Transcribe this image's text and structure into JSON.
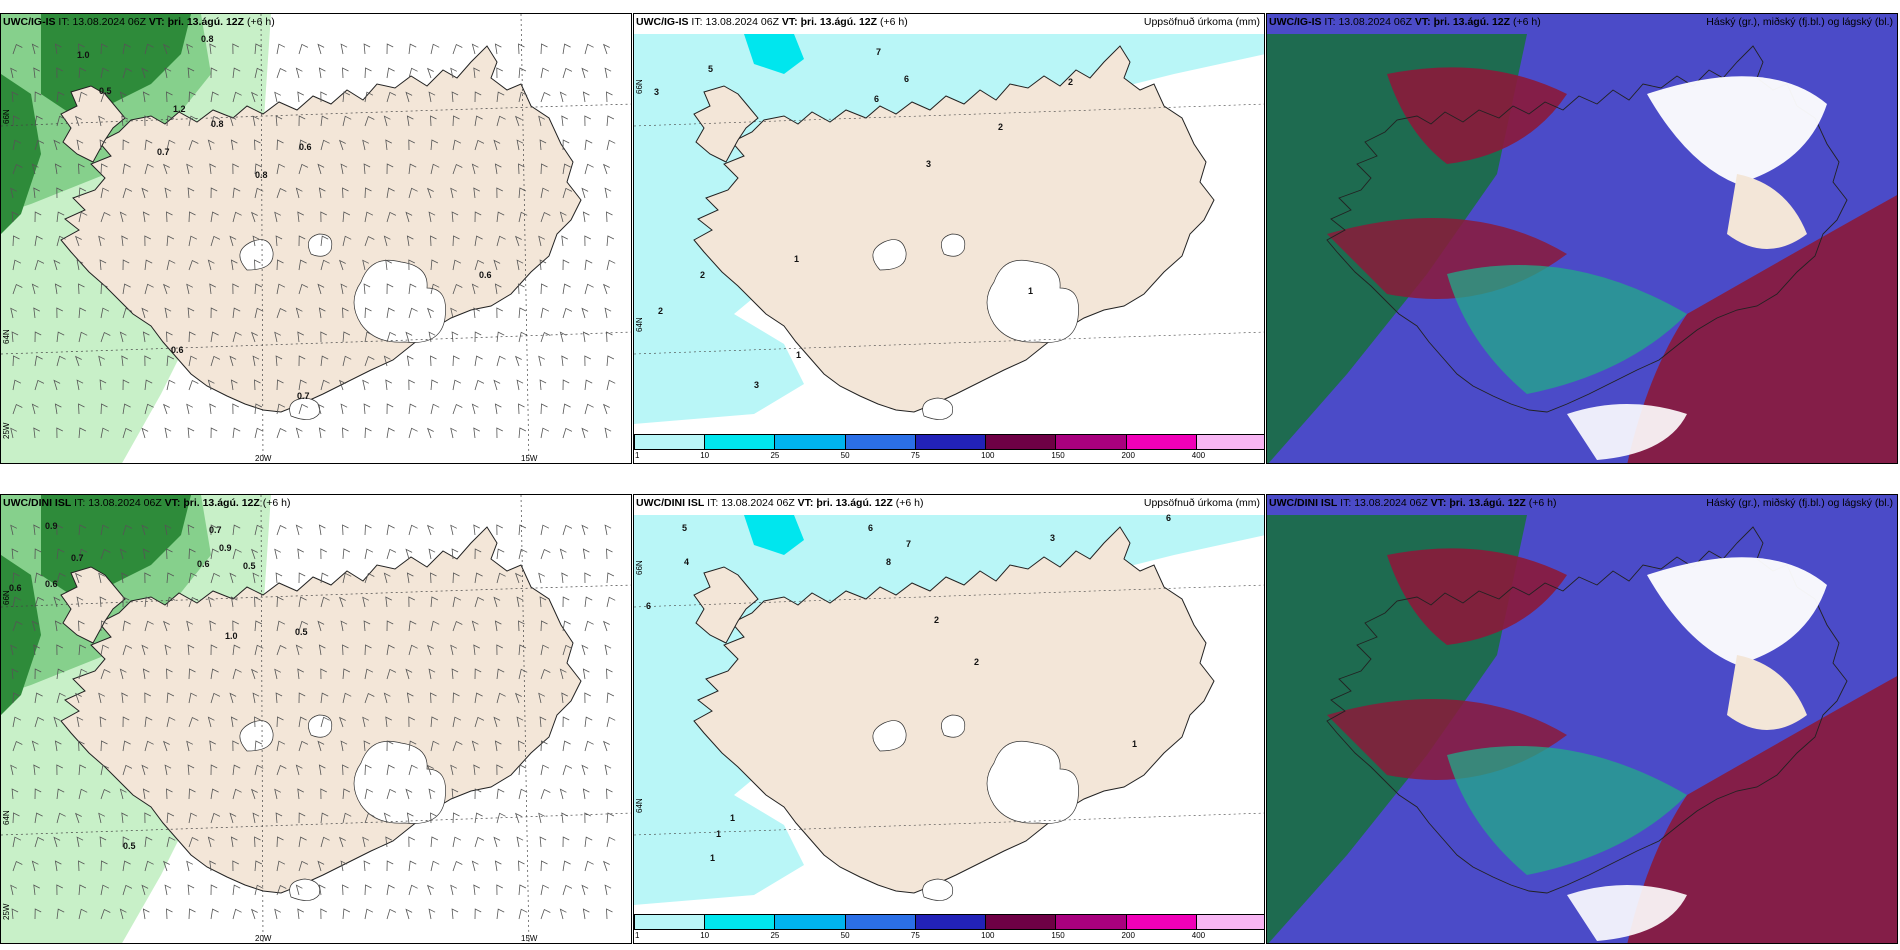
{
  "colors": {
    "land": "#f3e6d8",
    "sea": "#ffffff",
    "precip_light": "#b9f6f7",
    "green_light": "#c8f0c8",
    "green_mid": "#86d08c",
    "green_dark": "#2e8b3a",
    "cloud_high": "#1e6b50",
    "cloud_mid": "#8b1a3a",
    "cloud_low": "#4b4bc8"
  },
  "colorbar": [
    {
      "label": "1",
      "color": "#b9f6f7"
    },
    {
      "label": "10",
      "color": "#00e6ee"
    },
    {
      "label": "25",
      "color": "#00b4ef"
    },
    {
      "label": "50",
      "color": "#2b6fe6"
    },
    {
      "label": "75",
      "color": "#2222b8"
    },
    {
      "label": "100",
      "color": "#6e0045"
    },
    {
      "label": "150",
      "color": "#a8007e"
    },
    {
      "label": "200",
      "color": "#f000b8"
    },
    {
      "label": "400",
      "color": "#f7b6f3"
    }
  ],
  "row1": {
    "wind": {
      "model": "UWC/IG-IS",
      "it_label": "IT:",
      "it": "13.08.2024 06Z",
      "vt_label": "VT:",
      "vt": "þri. 13.ágú. 12Z",
      "lead": "(+6 h)",
      "values": [
        "1.0",
        "0.8",
        "0.5",
        "1.2",
        "0.8",
        "0.7",
        "0.6",
        "0.8",
        "0.6",
        "0.6",
        "0.7"
      ],
      "lon_ticks": [
        "20W",
        "15W"
      ],
      "lat_ticks": [
        "66N",
        "64N",
        "25W"
      ]
    },
    "precip": {
      "model": "UWC/IG-IS",
      "it_label": "IT:",
      "it": "13.08.2024 06Z",
      "vt_label": "VT:",
      "vt": "þri. 13.ágú. 12Z",
      "lead": "(+6 h)",
      "right_title": "Uppsöfnuð úrkoma (mm)",
      "values": [
        "7",
        "5",
        "3",
        "6",
        "6",
        "2",
        "2",
        "3",
        "1",
        "2",
        "1",
        "1",
        "2",
        "3"
      ],
      "lat_ticks": [
        "66N",
        "64N"
      ]
    },
    "cloud": {
      "model": "UWC/IG-IS",
      "it_label": "IT:",
      "it": "13.08.2024 06Z",
      "vt_label": "VT:",
      "vt": "þri. 13.ágú. 12Z",
      "lead": "(+6 h)",
      "right_title": "Háský (gr.), miðský (fj.bl.) og lágský (bl.)"
    }
  },
  "row2": {
    "wind": {
      "model": "UWC/DINI ISL",
      "it_label": "IT:",
      "it": "13.08.2024 06Z",
      "vt_label": "VT:",
      "vt": "þri. 13.ágú. 12Z",
      "lead": "(+6 h)",
      "values": [
        "0.9",
        "0.7",
        "0.6",
        "0.6",
        "0.7",
        "0.5",
        "0.9",
        "0.6",
        "1.0",
        "0.5",
        "0.5"
      ],
      "lon_ticks": [
        "20W",
        "15W"
      ],
      "lat_ticks": [
        "66N",
        "64N",
        "25W"
      ]
    },
    "precip": {
      "model": "UWC/DINI ISL",
      "it_label": "IT:",
      "it": "13.08.2024 06Z",
      "vt_label": "VT:",
      "vt": "þri. 13.ágú. 12Z",
      "lead": "(+6 h)",
      "right_title": "Uppsöfnuð úrkoma (mm)",
      "values": [
        "5",
        "6",
        "4",
        "6",
        "8",
        "7",
        "3",
        "2",
        "2",
        "1",
        "1",
        "1",
        "1",
        "6"
      ],
      "lat_ticks": [
        "66N",
        "64N"
      ]
    },
    "cloud": {
      "model": "UWC/DINI ISL",
      "it_label": "IT:",
      "it": "13.08.2024 06Z",
      "vt_label": "VT:",
      "vt": "þri. 13.ágú. 12Z",
      "lead": "(+6 h)",
      "right_title": "Háský (gr.), miðský (fj.bl.) og lágský (bl.)"
    }
  }
}
